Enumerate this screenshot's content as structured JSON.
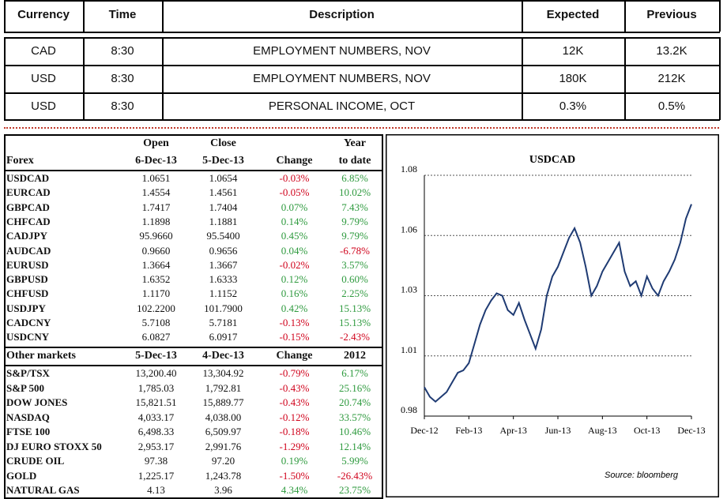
{
  "calendar": {
    "columns": [
      "Currency",
      "Time",
      "Description",
      "Expected",
      "Previous"
    ],
    "rows": [
      [
        "CAD",
        "8:30",
        "EMPLOYMENT NUMBERS, NOV",
        "12K",
        "13.2K"
      ],
      [
        "USD",
        "8:30",
        "EMPLOYMENT NUMBERS, NOV",
        "180K",
        "212K"
      ],
      [
        "USD",
        "8:30",
        "PERSONAL INCOME, OCT",
        "0.3%",
        "0.5%"
      ]
    ]
  },
  "forex": {
    "columns_top": [
      "Open",
      "Close",
      "Year"
    ],
    "columns": [
      "Forex",
      "6-Dec-13",
      "5-Dec-13",
      "Change",
      "to date"
    ],
    "rows": [
      [
        "USDCAD",
        "1.0651",
        "1.0654",
        "-0.03%",
        "6.85%"
      ],
      [
        "EURCAD",
        "1.4554",
        "1.4561",
        "-0.05%",
        "10.02%"
      ],
      [
        "GBPCAD",
        "1.7417",
        "1.7404",
        "0.07%",
        "7.43%"
      ],
      [
        "CHFCAD",
        "1.1898",
        "1.1881",
        "0.14%",
        "9.79%"
      ],
      [
        "CADJPY",
        "95.9660",
        "95.5400",
        "0.45%",
        "9.79%"
      ],
      [
        "AUDCAD",
        "0.9660",
        "0.9656",
        "0.04%",
        "-6.78%"
      ],
      [
        "EURUSD",
        "1.3664",
        "1.3667",
        "-0.02%",
        "3.57%"
      ],
      [
        "GBPUSD",
        "1.6352",
        "1.6333",
        "0.12%",
        "0.60%"
      ],
      [
        "CHFUSD",
        "1.1170",
        "1.1152",
        "0.16%",
        "2.25%"
      ],
      [
        "USDJPY",
        "102.2200",
        "101.7900",
        "0.42%",
        "15.13%"
      ],
      [
        "CADCNY",
        "5.7108",
        "5.7181",
        "-0.13%",
        "15.13%"
      ],
      [
        "USDCNY",
        "6.0827",
        "6.0917",
        "-0.15%",
        "-2.43%"
      ]
    ]
  },
  "other": {
    "columns": [
      "Other markets",
      "5-Dec-13",
      "4-Dec-13",
      "Change",
      "2012"
    ],
    "rows": [
      [
        "S&P/TSX",
        "13,200.40",
        "13,304.92",
        "-0.79%",
        "6.17%"
      ],
      [
        "S&P 500",
        "1,785.03",
        "1,792.81",
        "-0.43%",
        "25.16%"
      ],
      [
        "DOW JONES",
        "15,821.51",
        "15,889.77",
        "-0.43%",
        "20.74%"
      ],
      [
        "NASDAQ",
        "4,033.17",
        "4,038.00",
        "-0.12%",
        "33.57%"
      ],
      [
        "FTSE 100",
        "6,498.33",
        "6,509.97",
        "-0.18%",
        "10.46%"
      ],
      [
        "DJ EURO STOXX 50",
        "2,953.17",
        "2,991.76",
        "-1.29%",
        "12.14%"
      ],
      [
        "CRUDE OIL",
        "97.38",
        "97.20",
        "0.19%",
        "5.99%"
      ],
      [
        "GOLD",
        "1,225.17",
        "1,243.78",
        "-1.50%",
        "-26.43%"
      ],
      [
        "NATURAL GAS",
        "4.13",
        "3.96",
        "4.34%",
        "23.75%"
      ]
    ]
  },
  "chart_data": {
    "type": "line",
    "title": "USDCAD",
    "source": "Source: bloomberg",
    "categories": [
      "Dec-12",
      null,
      null,
      null,
      null,
      null,
      null,
      null,
      "Feb-13",
      null,
      null,
      null,
      null,
      null,
      null,
      null,
      "Apr-13",
      null,
      null,
      null,
      null,
      null,
      null,
      null,
      "Jun-13",
      null,
      null,
      null,
      null,
      null,
      null,
      null,
      "Aug-13",
      null,
      null,
      null,
      null,
      null,
      null,
      null,
      "Oct-13",
      null,
      null,
      null,
      null,
      null,
      null,
      null,
      "Dec-13"
    ],
    "series": [
      {
        "name": "USDCAD",
        "color": "#1f3b73",
        "values": [
          0.992,
          0.988,
          0.986,
          0.988,
          0.99,
          0.994,
          0.998,
          0.999,
          1.002,
          1.01,
          1.018,
          1.024,
          1.028,
          1.031,
          1.03,
          1.024,
          1.022,
          1.027,
          1.02,
          1.014,
          1.008,
          1.016,
          1.03,
          1.038,
          1.042,
          1.048,
          1.054,
          1.058,
          1.052,
          1.042,
          1.03,
          1.034,
          1.04,
          1.044,
          1.048,
          1.052,
          1.04,
          1.034,
          1.036,
          1.03,
          1.038,
          1.033,
          1.03,
          1.036,
          1.04,
          1.045,
          1.052,
          1.062,
          1.068
        ]
      }
    ],
    "ylim": [
      0.98,
      1.08
    ],
    "yticks": [
      0.98,
      {
        "value": 1.005,
        "label": "1.01"
      },
      1.03,
      {
        "value": 1.055,
        "label": "1.06"
      },
      1.08
    ],
    "grid": true
  }
}
